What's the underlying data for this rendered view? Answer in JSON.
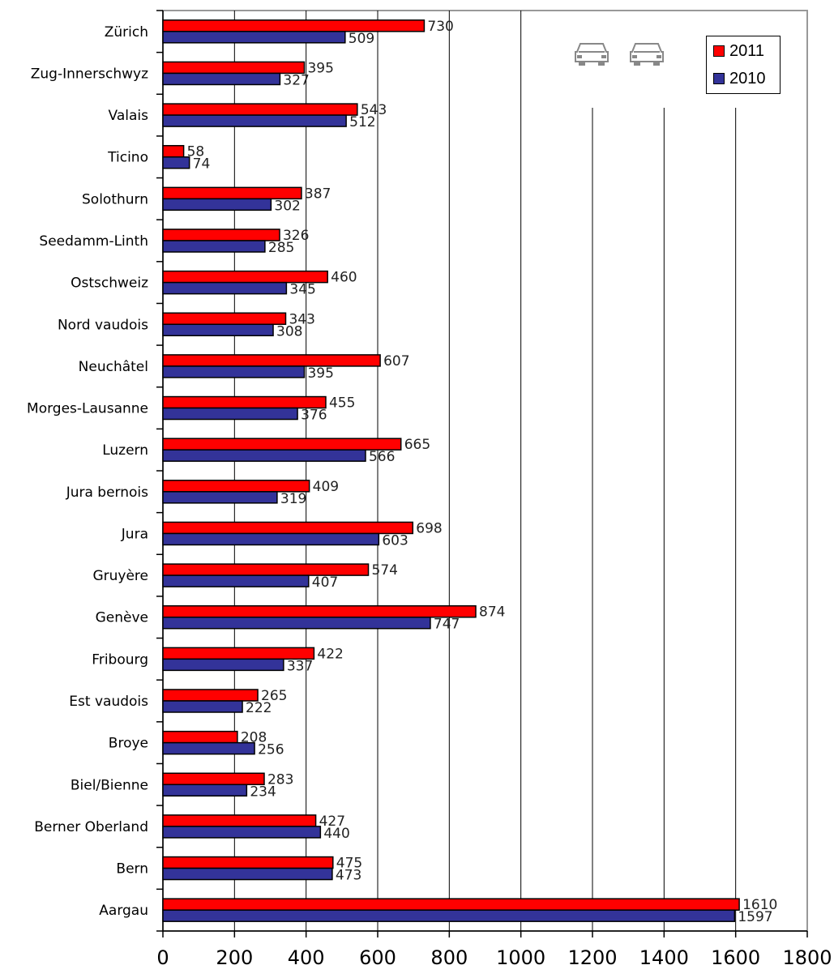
{
  "chart_data": {
    "type": "bar",
    "orientation": "horizontal",
    "categories": [
      "Zürich",
      "Zug-Innerschwyz",
      "Valais",
      "Ticino",
      "Solothurn",
      "Seedamm-Linth",
      "Ostschweiz",
      "Nord vaudois",
      "Neuchâtel",
      "Morges-Lausanne",
      "Luzern",
      "Jura bernois",
      "Jura ",
      "Gruyère",
      "Genève",
      "Fribourg",
      "Est vaudois",
      "Broye",
      "Biel/Bienne",
      "Berner Oberland",
      "Bern",
      "Aargau"
    ],
    "series": [
      {
        "name": "2011",
        "color": "#ff0000",
        "values": [
          730,
          395,
          543,
          58,
          387,
          326,
          460,
          343,
          607,
          455,
          665,
          409,
          698,
          574,
          874,
          422,
          265,
          208,
          283,
          427,
          475,
          1610
        ]
      },
      {
        "name": "2010",
        "color": "#333399",
        "values": [
          509,
          327,
          512,
          74,
          302,
          285,
          345,
          308,
          395,
          376,
          566,
          319,
          603,
          407,
          747,
          337,
          222,
          256,
          234,
          440,
          473,
          1597
        ]
      }
    ],
    "xlim": [
      0,
      1800
    ],
    "xticks": [
      "0",
      "200",
      "400",
      "600",
      "800",
      "1000",
      "1200",
      "1400",
      "1600",
      "1800"
    ],
    "grid": true,
    "legend_position": "top-right",
    "title": "",
    "xlabel": "",
    "ylabel": ""
  },
  "decorations": {
    "icons": [
      "car-icon",
      "car-icon"
    ]
  }
}
